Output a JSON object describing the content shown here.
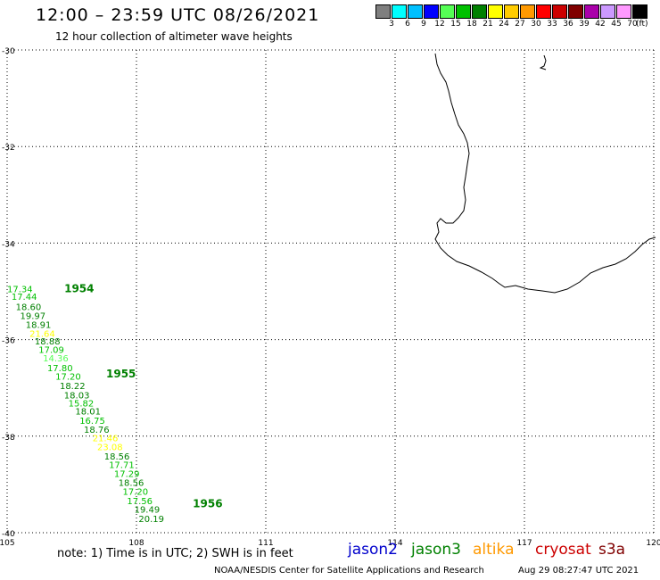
{
  "header": {
    "title": "12:00 – 23:59 UTC 08/26/2021",
    "subtitle": "12 hour collection of altimeter wave heights"
  },
  "color_scale": {
    "labels": [
      "3",
      "6",
      "9",
      "12",
      "15",
      "18",
      "21",
      "24",
      "27",
      "30",
      "33",
      "36",
      "39",
      "42",
      "45",
      "70"
    ],
    "unit": "(ft)",
    "colors": [
      "#7f7f7f",
      "#00ffff",
      "#00c0ff",
      "#0000ff",
      "#55ff55",
      "#00c000",
      "#008000",
      "#ffff00",
      "#ffcc00",
      "#ff9900",
      "#ff0000",
      "#cc0000",
      "#800000",
      "#aa00aa",
      "#cc99ff",
      "#ff99ff",
      "#000000"
    ]
  },
  "map": {
    "lat_range": [
      -40,
      -30
    ],
    "lon_range": [
      105,
      120
    ],
    "lat_ticks": [
      "-30",
      "-32",
      "-34",
      "-36",
      "-38",
      "-40"
    ],
    "lon_ticks": [
      "105",
      "108",
      "111",
      "114",
      "117",
      "120"
    ],
    "coastline_color": "#000000",
    "time_labels": [
      {
        "text": "1954",
        "lat": -34.94,
        "lon": 105.83,
        "color": "#008000"
      },
      {
        "text": "1955",
        "lat": -36.71,
        "lon": 106.8,
        "color": "#008000"
      },
      {
        "text": "1956",
        "lat": -39.4,
        "lon": 108.81,
        "color": "#008000"
      }
    ],
    "wave_heights": [
      {
        "value": "17.34",
        "lat": -34.94,
        "lon": 105.0,
        "color": "#00c000"
      },
      {
        "value": "17.44",
        "lat": -35.1,
        "lon": 105.1,
        "color": "#00c000"
      },
      {
        "value": "18.60",
        "lat": -35.31,
        "lon": 105.2,
        "color": "#008000"
      },
      {
        "value": "19.97",
        "lat": -35.5,
        "lon": 105.3,
        "color": "#008000"
      },
      {
        "value": "18.91",
        "lat": -35.68,
        "lon": 105.43,
        "color": "#008000"
      },
      {
        "value": "21.64",
        "lat": -35.87,
        "lon": 105.52,
        "color": "#ffff00"
      },
      {
        "value": "18.88",
        "lat": -36.03,
        "lon": 105.64,
        "color": "#008000"
      },
      {
        "value": "17.09",
        "lat": -36.2,
        "lon": 105.73,
        "color": "#00c000"
      },
      {
        "value": "14.36",
        "lat": -36.38,
        "lon": 105.83,
        "color": "#55ff55"
      },
      {
        "value": "17.80",
        "lat": -36.58,
        "lon": 105.93,
        "color": "#00c000"
      },
      {
        "value": "17.20",
        "lat": -36.76,
        "lon": 106.12,
        "color": "#00c000"
      },
      {
        "value": "18.22",
        "lat": -36.95,
        "lon": 106.22,
        "color": "#008000"
      },
      {
        "value": "18.03",
        "lat": -37.14,
        "lon": 106.32,
        "color": "#008000"
      },
      {
        "value": "15.82",
        "lat": -37.31,
        "lon": 106.42,
        "color": "#00c000"
      },
      {
        "value": "18.01",
        "lat": -37.48,
        "lon": 106.58,
        "color": "#008000"
      },
      {
        "value": "16.75",
        "lat": -37.67,
        "lon": 106.68,
        "color": "#00c000"
      },
      {
        "value": "18.76",
        "lat": -37.86,
        "lon": 106.78,
        "color": "#008000"
      },
      {
        "value": "21.46",
        "lat": -38.03,
        "lon": 106.98,
        "color": "#ffff00"
      },
      {
        "value": "23.08",
        "lat": -38.22,
        "lon": 107.09,
        "color": "#ffff00"
      },
      {
        "value": "18.56",
        "lat": -38.41,
        "lon": 107.25,
        "color": "#008000"
      },
      {
        "value": "17.71",
        "lat": -38.59,
        "lon": 107.36,
        "color": "#00c000"
      },
      {
        "value": "17.29",
        "lat": -38.77,
        "lon": 107.48,
        "color": "#00c000"
      },
      {
        "value": "18.56",
        "lat": -38.96,
        "lon": 107.58,
        "color": "#008000"
      },
      {
        "value": "17.20",
        "lat": -39.14,
        "lon": 107.68,
        "color": "#00c000"
      },
      {
        "value": "17.56",
        "lat": -39.33,
        "lon": 107.78,
        "color": "#00c000"
      },
      {
        "value": "19.49",
        "lat": -39.51,
        "lon": 107.95,
        "color": "#008000"
      },
      {
        "value": "20.19",
        "lat": -39.7,
        "lon": 108.05,
        "color": "#008000"
      }
    ]
  },
  "footer": {
    "note": "note:  1) Time is in UTC;  2) SWH is in feet",
    "satellites": [
      {
        "name": "jason2",
        "color": "#0000cc"
      },
      {
        "name": "jason3",
        "color": "#008000"
      },
      {
        "name": "altika",
        "color": "#ff9900"
      },
      {
        "name": "cryosat",
        "color": "#cc0000"
      },
      {
        "name": "s3a",
        "color": "#800000"
      }
    ],
    "credit": "NOAA/NESDIS Center for Satellite Applications and Research",
    "timestamp": "Aug 29 08:27:47 UTC 2021"
  }
}
